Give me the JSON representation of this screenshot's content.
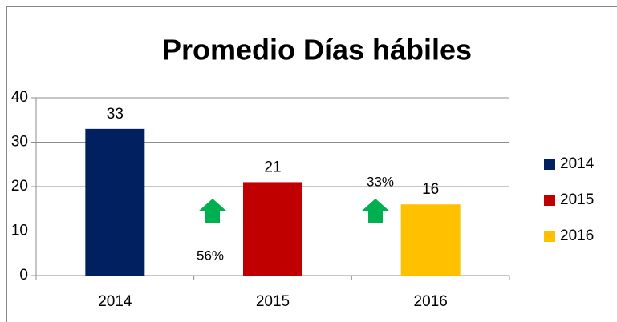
{
  "chart_data": {
    "type": "bar",
    "title": "Promedio Días hábiles",
    "categories": [
      "2014",
      "2015",
      "2016"
    ],
    "series": [
      {
        "name": "2014",
        "color": "#002060",
        "values": [
          33,
          null,
          null
        ]
      },
      {
        "name": "2015",
        "color": "#c00000",
        "values": [
          null,
          21,
          null
        ]
      },
      {
        "name": "2016",
        "color": "#ffc000",
        "values": [
          null,
          null,
          16
        ]
      }
    ],
    "ylim": [
      0,
      40
    ],
    "yticks": [
      0,
      10,
      20,
      30,
      40
    ],
    "grid": true,
    "legend": "right",
    "annotations": [
      {
        "text": "56%",
        "color": "#00b050"
      },
      {
        "text": "33%",
        "color": "#00b050"
      }
    ]
  }
}
